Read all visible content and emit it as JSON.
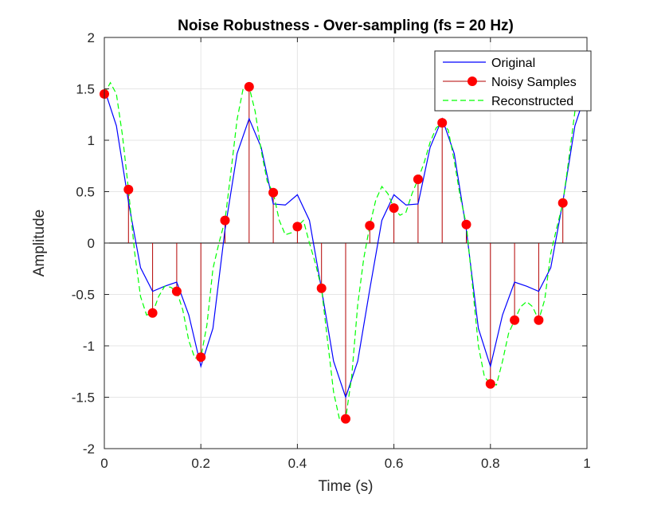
{
  "chart_data": {
    "type": "line",
    "title": "Noise Robustness - Over-sampling (fs = 20 Hz)",
    "xlabel": "Time (s)",
    "ylabel": "Amplitude",
    "xlim": [
      0,
      1
    ],
    "ylim": [
      -2,
      2
    ],
    "grid": true,
    "legend_position": "top-right",
    "x_ticks": [
      0,
      0.2,
      0.4,
      0.6,
      0.8,
      1
    ],
    "x_tick_labels": [
      "0",
      "0.2",
      "0.4",
      "0.6",
      "0.8",
      "1"
    ],
    "y_ticks": [
      2,
      1.5,
      1,
      0.5,
      0,
      -0.5,
      -1,
      -1.5,
      -2
    ],
    "y_tick_labels": [
      "2",
      "1.5",
      "1",
      "0.5",
      "0",
      "-0.5",
      "-1",
      "-1.5",
      "-2"
    ],
    "series": [
      {
        "name": "Original",
        "style": "line",
        "color": "#0000ff",
        "x": [
          0,
          0.025,
          0.05,
          0.075,
          0.1,
          0.125,
          0.15,
          0.175,
          0.2,
          0.225,
          0.25,
          0.275,
          0.3,
          0.325,
          0.35,
          0.375,
          0.4,
          0.425,
          0.45,
          0.475,
          0.5,
          0.525,
          0.55,
          0.575,
          0.6,
          0.625,
          0.65,
          0.675,
          0.7,
          0.725,
          0.75,
          0.775,
          0.8,
          0.825,
          0.85,
          0.875,
          0.9,
          0.925,
          0.95,
          0.975,
          1
        ],
        "y": [
          1.5,
          1.14,
          0.4,
          -0.24,
          -0.47,
          -0.42,
          -0.38,
          -0.7,
          -1.2,
          -0.83,
          0.13,
          0.87,
          1.21,
          0.93,
          0.38,
          0.37,
          0.47,
          0.22,
          -0.45,
          -1.15,
          -1.5,
          -1.15,
          -0.45,
          0.22,
          0.47,
          0.37,
          0.38,
          0.93,
          1.21,
          0.87,
          0.13,
          -0.83,
          -1.2,
          -0.7,
          -0.38,
          -0.42,
          -0.47,
          -0.24,
          0.4,
          1.14,
          1.5
        ]
      },
      {
        "name": "Noisy Samples",
        "style": "stem",
        "color": "#ff0000",
        "x": [
          0,
          0.05,
          0.1,
          0.15,
          0.2,
          0.25,
          0.3,
          0.35,
          0.4,
          0.45,
          0.5,
          0.55,
          0.6,
          0.65,
          0.7,
          0.75,
          0.8,
          0.85,
          0.9,
          0.95,
          1
        ],
        "y": [
          1.45,
          0.52,
          -0.68,
          -0.47,
          -1.11,
          0.22,
          1.52,
          0.49,
          0.16,
          -0.44,
          -1.71,
          0.17,
          0.34,
          0.62,
          1.17,
          0.18,
          -1.37,
          -0.75,
          -0.75,
          0.39,
          1.38
        ]
      },
      {
        "name": "Reconstructed",
        "style": "dashed",
        "color": "#00ff00",
        "x": [
          0,
          0.0125,
          0.025,
          0.0375,
          0.05,
          0.0625,
          0.075,
          0.0875,
          0.1,
          0.1125,
          0.125,
          0.1375,
          0.15,
          0.1625,
          0.175,
          0.1875,
          0.2,
          0.2125,
          0.225,
          0.2375,
          0.25,
          0.2625,
          0.275,
          0.2875,
          0.3,
          0.3125,
          0.325,
          0.3375,
          0.35,
          0.3625,
          0.375,
          0.3875,
          0.4,
          0.4125,
          0.425,
          0.4375,
          0.45,
          0.4625,
          0.475,
          0.4875,
          0.5,
          0.5125,
          0.525,
          0.5375,
          0.55,
          0.5625,
          0.575,
          0.5875,
          0.6,
          0.6125,
          0.625,
          0.6375,
          0.65,
          0.6625,
          0.675,
          0.6875,
          0.7,
          0.7125,
          0.725,
          0.7375,
          0.75,
          0.7625,
          0.775,
          0.7875,
          0.8,
          0.8125,
          0.825,
          0.8375,
          0.85,
          0.8625,
          0.875,
          0.8875,
          0.9,
          0.9125,
          0.925,
          0.9375,
          0.95,
          0.9625,
          0.975,
          0.9875,
          1
        ],
        "y": [
          1.45,
          1.56,
          1.45,
          1.05,
          0.52,
          -0.08,
          -0.52,
          -0.7,
          -0.68,
          -0.52,
          -0.42,
          -0.43,
          -0.47,
          -0.65,
          -0.95,
          -1.12,
          -1.11,
          -0.8,
          -0.25,
          0.0,
          0.22,
          0.7,
          1.2,
          1.5,
          1.52,
          1.28,
          0.9,
          0.6,
          0.49,
          0.22,
          0.08,
          0.1,
          0.16,
          0.22,
          0.0,
          -0.2,
          -0.44,
          -0.95,
          -1.45,
          -1.72,
          -1.71,
          -1.3,
          -0.6,
          -0.15,
          0.17,
          0.42,
          0.55,
          0.48,
          0.34,
          0.27,
          0.3,
          0.48,
          0.62,
          0.78,
          0.98,
          1.12,
          1.17,
          1.1,
          0.8,
          0.45,
          0.18,
          -0.4,
          -1.0,
          -1.3,
          -1.37,
          -1.38,
          -1.15,
          -0.88,
          -0.75,
          -0.62,
          -0.57,
          -0.62,
          -0.75,
          -0.55,
          -0.1,
          0.15,
          0.39,
          0.82,
          1.28,
          1.48,
          1.38
        ]
      }
    ]
  },
  "colors": {
    "original": "#0000ff",
    "samples": "#ff0000",
    "samples_stem": "#b30000",
    "reconstructed": "#00ff00",
    "grid": "#e6e6e6",
    "axes": "#262626"
  }
}
